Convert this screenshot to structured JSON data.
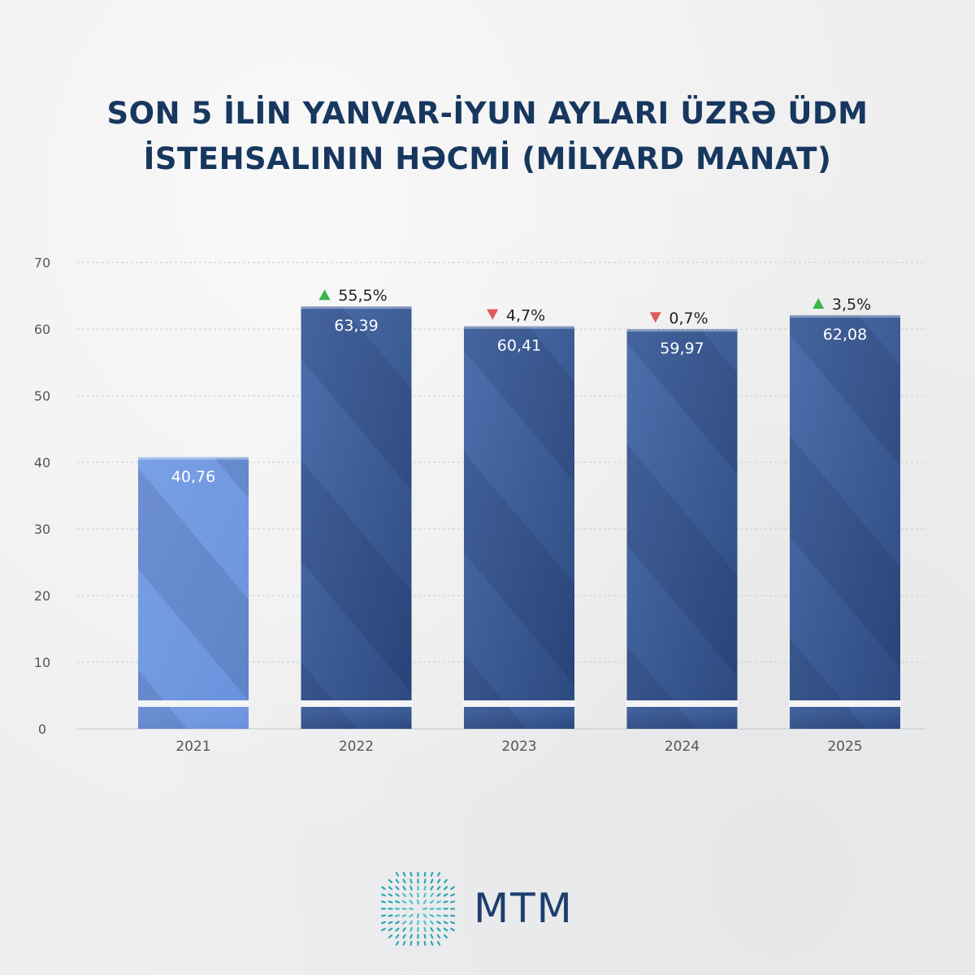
{
  "title_lines": [
    "SON 5 İLİN YANVAR-İYUN AYLARI ÜZRƏ ÜDM",
    "İSTEHSALININ HƏCMİ (MİLYARD MANAT)"
  ],
  "logo": {
    "text": "MTM"
  },
  "colors": {
    "bar_first": "#6a92dc",
    "bar_rest": "#46679f",
    "bar_dark": "#2d4a80",
    "up": "#3ab54a",
    "down": "#e05a5a",
    "title": "#17375e"
  },
  "chart_data": {
    "type": "bar",
    "categories": [
      "2021",
      "2022",
      "2023",
      "2024",
      "2025"
    ],
    "values": [
      40.76,
      63.39,
      60.41,
      59.97,
      62.08
    ],
    "value_labels": [
      "40,76",
      "63,39",
      "60,41",
      "59,97",
      "62,08"
    ],
    "changes": [
      null,
      {
        "direction": "up",
        "label": "55,5%"
      },
      {
        "direction": "down",
        "label": "4,7%"
      },
      {
        "direction": "down",
        "label": "0,7%"
      },
      {
        "direction": "up",
        "label": "3,5%"
      }
    ],
    "yticks": [
      "0",
      "10",
      "20",
      "30",
      "40",
      "50",
      "60",
      "70"
    ],
    "ylim": [
      0,
      70
    ],
    "grid": true,
    "legend": "none"
  }
}
